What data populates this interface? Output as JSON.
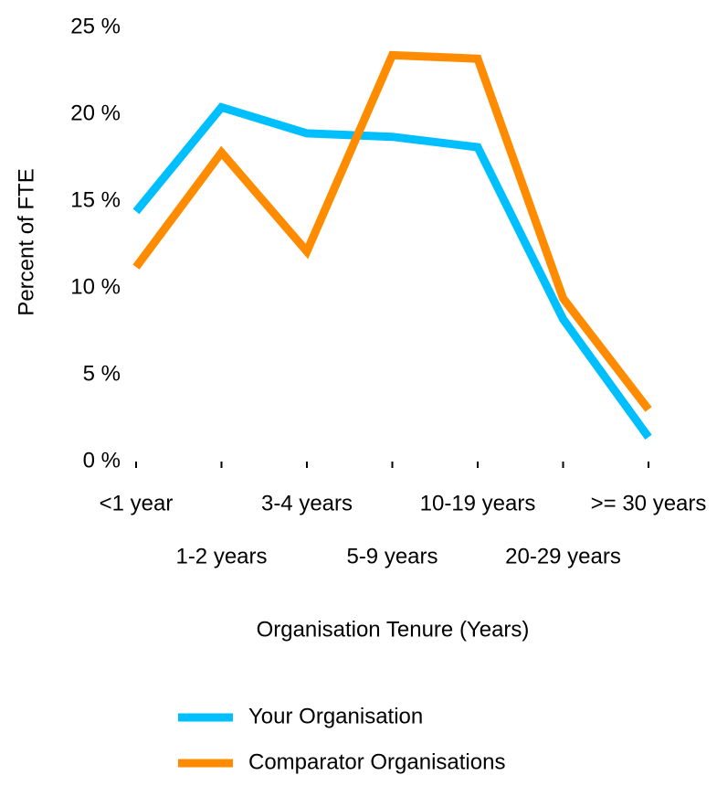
{
  "chart_data": {
    "type": "line",
    "x_label": "Organisation Tenure (Years)",
    "y_label": "Percent of FTE",
    "categories": [
      "<1 year",
      "1-2 years",
      "3-4 years",
      "5-9 years",
      "10-19 years",
      "20-29 years",
      ">= 30 years"
    ],
    "series": [
      {
        "name": "Your Organisation",
        "color": "#00bfff",
        "values": [
          14.4,
          20.4,
          18.9,
          18.7,
          18.1,
          8.2,
          1.4
        ]
      },
      {
        "name": "Comparator Organisations",
        "color": "#ff8c00",
        "values": [
          11.2,
          17.8,
          12.1,
          23.4,
          23.2,
          9.4,
          3.0
        ]
      }
    ],
    "ylim": [
      0,
      25
    ],
    "yticks": [
      {
        "value": 0,
        "label": "0 %"
      },
      {
        "value": 5,
        "label": "5 %"
      },
      {
        "value": 10,
        "label": "10 %"
      },
      {
        "value": 15,
        "label": "15 %"
      },
      {
        "value": 20,
        "label": "20 %"
      },
      {
        "value": 25,
        "label": "25 %"
      }
    ],
    "grid": false,
    "legend": "bottom"
  }
}
